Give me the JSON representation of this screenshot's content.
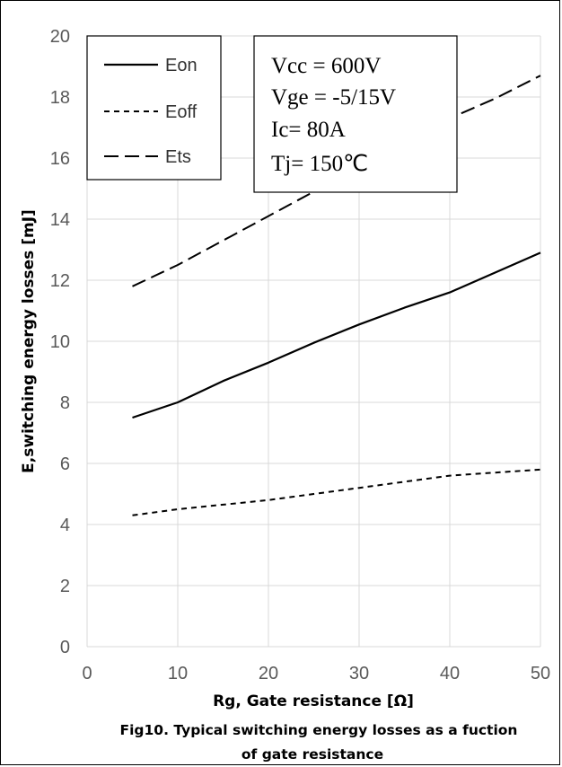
{
  "chart_data": {
    "type": "line",
    "xlabel": "Rg, Gate resistance [Ω]",
    "ylabel": "E,switching energy losses [mJ]",
    "xlim": [
      0,
      50
    ],
    "ylim": [
      0,
      20
    ],
    "x_ticks": [
      "0",
      "10",
      "20",
      "30",
      "40",
      "50"
    ],
    "y_ticks": [
      "0",
      "2",
      "4",
      "6",
      "8",
      "10",
      "12",
      "14",
      "16",
      "18",
      "20"
    ],
    "grid": true,
    "legend_position": "top-left",
    "series": [
      {
        "name": "Eon",
        "style": "solid",
        "points": [
          [
            5,
            7.5
          ],
          [
            10,
            8.0
          ],
          [
            15,
            8.7
          ],
          [
            20,
            9.3
          ],
          [
            25,
            9.95
          ],
          [
            30,
            10.55
          ],
          [
            35,
            11.1
          ],
          [
            40,
            11.6
          ],
          [
            45,
            12.25
          ],
          [
            50,
            12.9
          ]
        ]
      },
      {
        "name": "Eoff",
        "style": "short-dash",
        "points": [
          [
            5,
            4.3
          ],
          [
            10,
            4.5
          ],
          [
            15,
            4.65
          ],
          [
            20,
            4.8
          ],
          [
            25,
            5.0
          ],
          [
            30,
            5.2
          ],
          [
            35,
            5.4
          ],
          [
            40,
            5.6
          ],
          [
            45,
            5.7
          ],
          [
            50,
            5.8
          ]
        ]
      },
      {
        "name": "Ets",
        "style": "long-dash",
        "points": [
          [
            5,
            11.8
          ],
          [
            10,
            12.5
          ],
          [
            15,
            13.3
          ],
          [
            20,
            14.1
          ],
          [
            25,
            14.9
          ],
          [
            30,
            15.75
          ],
          [
            35,
            16.55
          ],
          [
            40,
            17.3
          ],
          [
            45,
            17.95
          ],
          [
            50,
            18.7
          ]
        ]
      }
    ],
    "annotations": [
      "Vcc = 600V",
      "Vge = -5/15V",
      "Ic= 80A",
      "Tj= 150℃"
    ],
    "caption": [
      "Fig10. Typical switching energy losses as a fuction",
      "of gate resistance"
    ],
    "colors": {
      "line": "#000000",
      "grid": "#d9d9d9",
      "tick_text": "#595959"
    }
  }
}
